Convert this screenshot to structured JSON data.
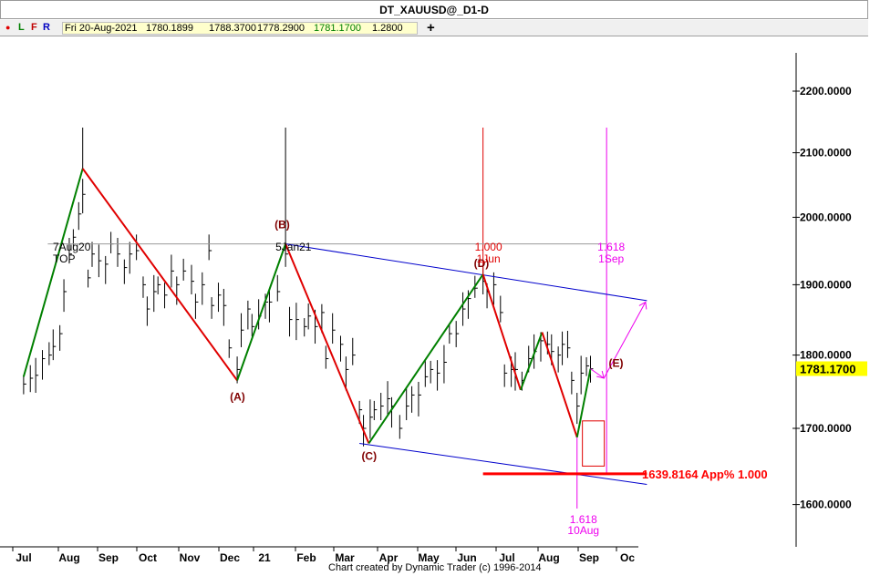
{
  "window": {
    "title": "DT_XAUUSD@_D1-D"
  },
  "toolbar": {
    "dot": "●",
    "buttons": [
      "L",
      "F",
      "R"
    ],
    "ohlc": {
      "date": "Fri 20-Aug-2021",
      "open": "1780.1899",
      "high": "1788.3700",
      "low": "1778.2900",
      "close": "1781.1700",
      "change": "1.2800"
    },
    "add_symbol": "+"
  },
  "colors": {
    "up_leg": "#008000",
    "down_leg": "#e00000",
    "wave_label": "#800000",
    "channel": "#0000cc",
    "projection": "#ee00ee",
    "target": "#ff0000",
    "price_tag": "#ffff00"
  },
  "annotations": {
    "left_high_date": "7Aug20",
    "left_high_label": "TOP",
    "b_date": "5Jan21",
    "d_ratio": "1.000",
    "d_date": "1Jun",
    "sep_ratio": "1.618",
    "sep_date": "1Sep",
    "aug_ratio": "1.618",
    "aug_date": "10Aug",
    "target_label": "1639.8164 App% 1.000"
  },
  "footer": "Chart created by Dynamic Trader  (c) 1996-2014",
  "chart_data": {
    "type": "line",
    "title": "DT_XAUUSD@_D1-D",
    "x_axis": {
      "labels": [
        "Jul",
        "Aug",
        "Sep",
        "Oct",
        "Nov",
        "Dec",
        "21",
        "Feb",
        "Mar",
        "Apr",
        "May",
        "Jun",
        "Jul",
        "Aug",
        "Sep",
        "Oc"
      ],
      "range": [
        "2020-06-24",
        "2021-10-06"
      ]
    },
    "y_axis": {
      "ticks": [
        "2200.0000",
        "2100.0000",
        "2000.0000",
        "1900.0000",
        "1800.0000",
        "1700.0000",
        "1600.0000"
      ],
      "scale": "log",
      "range": [
        1560,
        2280
      ]
    },
    "last_price": "1781.1700",
    "wave_points": [
      {
        "label": "",
        "date": "2020-06-24",
        "price": 1770
      },
      {
        "label": "",
        "date": "2020-08-07",
        "price": 2075
      },
      {
        "label": "(A)",
        "date": "2020-11-30",
        "price": 1765
      },
      {
        "label": "(B)",
        "date": "2021-01-05",
        "price": 1960
      },
      {
        "label": "(C)",
        "date": "2021-03-08",
        "price": 1680
      },
      {
        "label": "(D)",
        "date": "2021-06-01",
        "price": 1915
      },
      {
        "label": "",
        "date": "2021-06-29",
        "price": 1752
      },
      {
        "label": "",
        "date": "2021-07-15",
        "price": 1832
      },
      {
        "label": "",
        "date": "2021-08-10",
        "price": 1688
      },
      {
        "label": "(E)",
        "date": "2021-08-20",
        "price": 1781
      }
    ],
    "channel_lines": [
      {
        "from": {
          "date": "2021-01-05",
          "price": 1960
        },
        "to": {
          "date": "2021-10-01",
          "price": 1877
        }
      },
      {
        "from": {
          "date": "2021-03-01",
          "price": 1680
        },
        "to": {
          "date": "2021-10-01",
          "price": 1626
        }
      }
    ],
    "target_price": 1639.8164,
    "projection_path": [
      {
        "date": "2021-08-30",
        "price": 1768
      },
      {
        "date": "2021-09-30",
        "price": 1875
      }
    ],
    "series": [
      {
        "name": "",
        "type": "ohlc_bars",
        "values": [
          [
            "2020-06-24",
            1760
          ],
          [
            "2020-06-29",
            1768
          ],
          [
            "2020-07-03",
            1772
          ],
          [
            "2020-07-08",
            1795
          ],
          [
            "2020-07-13",
            1800
          ],
          [
            "2020-07-16",
            1812
          ],
          [
            "2020-07-21",
            1830
          ],
          [
            "2020-07-24",
            1890
          ],
          [
            "2020-07-28",
            1945
          ],
          [
            "2020-07-31",
            1970
          ],
          [
            "2020-08-04",
            2005
          ],
          [
            "2020-08-07",
            2035
          ],
          [
            "2020-08-11",
            1910
          ],
          [
            "2020-08-14",
            1945
          ],
          [
            "2020-08-19",
            1935
          ],
          [
            "2020-08-24",
            1930
          ],
          [
            "2020-08-28",
            1960
          ],
          [
            "2020-09-02",
            1945
          ],
          [
            "2020-09-07",
            1925
          ],
          [
            "2020-09-11",
            1945
          ],
          [
            "2020-09-16",
            1950
          ],
          [
            "2020-09-21",
            1900
          ],
          [
            "2020-09-24",
            1865
          ],
          [
            "2020-09-29",
            1890
          ],
          [
            "2020-10-02",
            1900
          ],
          [
            "2020-10-07",
            1885
          ],
          [
            "2020-10-12",
            1920
          ],
          [
            "2020-10-16",
            1900
          ],
          [
            "2020-10-21",
            1920
          ],
          [
            "2020-10-27",
            1905
          ],
          [
            "2020-10-30",
            1875
          ],
          [
            "2020-11-04",
            1900
          ],
          [
            "2020-11-09",
            1950
          ],
          [
            "2020-11-11",
            1870
          ],
          [
            "2020-11-16",
            1885
          ],
          [
            "2020-11-20",
            1870
          ],
          [
            "2020-11-24",
            1810
          ],
          [
            "2020-11-30",
            1780
          ],
          [
            "2020-12-03",
            1835
          ],
          [
            "2020-12-08",
            1865
          ],
          [
            "2020-12-11",
            1840
          ],
          [
            "2020-12-16",
            1855
          ],
          [
            "2020-12-21",
            1875
          ],
          [
            "2020-12-24",
            1875
          ],
          [
            "2020-12-30",
            1890
          ],
          [
            "2021-01-05",
            1945
          ],
          [
            "2021-01-08",
            1850
          ],
          [
            "2021-01-13",
            1850
          ],
          [
            "2021-01-19",
            1840
          ],
          [
            "2021-01-22",
            1855
          ],
          [
            "2021-01-27",
            1840
          ],
          [
            "2021-02-01",
            1860
          ],
          [
            "2021-02-04",
            1795
          ],
          [
            "2021-02-09",
            1835
          ],
          [
            "2021-02-15",
            1815
          ],
          [
            "2021-02-19",
            1780
          ],
          [
            "2021-02-24",
            1800
          ],
          [
            "2021-03-01",
            1725
          ],
          [
            "2021-03-04",
            1700
          ],
          [
            "2021-03-09",
            1715
          ],
          [
            "2021-03-12",
            1725
          ],
          [
            "2021-03-17",
            1730
          ],
          [
            "2021-03-22",
            1740
          ],
          [
            "2021-03-25",
            1730
          ],
          [
            "2021-03-31",
            1700
          ],
          [
            "2021-04-05",
            1730
          ],
          [
            "2021-04-09",
            1745
          ],
          [
            "2021-04-14",
            1745
          ],
          [
            "2021-04-19",
            1770
          ],
          [
            "2021-04-23",
            1780
          ],
          [
            "2021-04-28",
            1775
          ],
          [
            "2021-05-03",
            1790
          ],
          [
            "2021-05-07",
            1830
          ],
          [
            "2021-05-12",
            1830
          ],
          [
            "2021-05-17",
            1865
          ],
          [
            "2021-05-21",
            1880
          ],
          [
            "2021-05-26",
            1895
          ],
          [
            "2021-06-01",
            1905
          ],
          [
            "2021-06-04",
            1890
          ],
          [
            "2021-06-09",
            1900
          ],
          [
            "2021-06-14",
            1860
          ],
          [
            "2021-06-17",
            1775
          ],
          [
            "2021-06-22",
            1780
          ],
          [
            "2021-06-25",
            1780
          ],
          [
            "2021-06-30",
            1765
          ],
          [
            "2021-07-05",
            1795
          ],
          [
            "2021-07-09",
            1805
          ],
          [
            "2021-07-14",
            1820
          ],
          [
            "2021-07-19",
            1815
          ],
          [
            "2021-07-22",
            1805
          ],
          [
            "2021-07-27",
            1800
          ],
          [
            "2021-07-30",
            1815
          ],
          [
            "2021-08-03",
            1810
          ],
          [
            "2021-08-06",
            1765
          ],
          [
            "2021-08-10",
            1730
          ],
          [
            "2021-08-13",
            1775
          ],
          [
            "2021-08-17",
            1785
          ],
          [
            "2021-08-20",
            1781
          ]
        ]
      }
    ]
  }
}
